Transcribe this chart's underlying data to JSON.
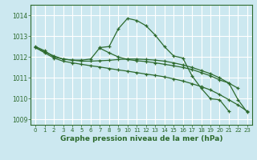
{
  "background_color": "#cce8f0",
  "grid_color": "#ffffff",
  "line_color": "#2d6a2d",
  "xlabel": "Graphe pression niveau de la mer (hPa)",
  "ylim": [
    1008.75,
    1014.5
  ],
  "xlim": [
    -0.5,
    23.5
  ],
  "yticks": [
    1009,
    1010,
    1011,
    1012,
    1013,
    1014
  ],
  "xticks": [
    0,
    1,
    2,
    3,
    4,
    5,
    6,
    7,
    8,
    9,
    10,
    11,
    12,
    13,
    14,
    15,
    16,
    17,
    18,
    19,
    20,
    21,
    22,
    23
  ],
  "lines": [
    {
      "x": [
        0,
        1,
        2,
        3,
        4,
        5,
        6,
        7,
        8,
        9,
        10,
        11,
        12,
        13,
        14,
        15,
        16,
        17,
        18,
        19,
        20,
        21
      ],
      "y": [
        1012.5,
        1012.3,
        1012.0,
        1011.9,
        1011.85,
        1011.85,
        1011.9,
        1012.45,
        1012.5,
        1013.35,
        1013.85,
        1013.75,
        1013.5,
        1013.05,
        1012.5,
        1012.05,
        1011.95,
        1011.1,
        1010.5,
        1010.0,
        1009.95,
        1009.4
      ]
    },
    {
      "x": [
        0,
        1,
        2,
        3,
        4,
        5,
        6,
        7,
        8,
        9,
        10,
        11,
        12,
        13,
        14,
        15,
        16,
        17,
        18,
        19,
        20,
        21,
        22
      ],
      "y": [
        1012.45,
        1012.25,
        1012.05,
        1011.9,
        1011.85,
        1011.8,
        1011.8,
        1011.82,
        1011.84,
        1011.88,
        1011.9,
        1011.9,
        1011.88,
        1011.85,
        1011.8,
        1011.72,
        1011.62,
        1011.5,
        1011.35,
        1011.2,
        1011.0,
        1010.75,
        1010.5
      ]
    },
    {
      "x": [
        0,
        1,
        2,
        3,
        4,
        5,
        6,
        7,
        8,
        9,
        10,
        11,
        12,
        13,
        14,
        15,
        16,
        17,
        18,
        19,
        20,
        21,
        22,
        23
      ],
      "y": [
        1012.45,
        1012.2,
        1011.95,
        1011.8,
        1011.72,
        1011.65,
        1011.58,
        1011.52,
        1011.45,
        1011.38,
        1011.32,
        1011.25,
        1011.18,
        1011.12,
        1011.05,
        1010.95,
        1010.85,
        1010.72,
        1010.58,
        1010.42,
        1010.2,
        1009.95,
        1009.7,
        1009.4
      ]
    },
    {
      "x": [
        7,
        8,
        9,
        10,
        11,
        12,
        13,
        14,
        15,
        16,
        17,
        18,
        19,
        20,
        21,
        22,
        23
      ],
      "y": [
        1012.42,
        1012.2,
        1012.0,
        1011.88,
        1011.82,
        1011.78,
        1011.72,
        1011.65,
        1011.58,
        1011.5,
        1011.4,
        1011.25,
        1011.1,
        1010.9,
        1010.75,
        1009.95,
        1009.35
      ]
    }
  ]
}
